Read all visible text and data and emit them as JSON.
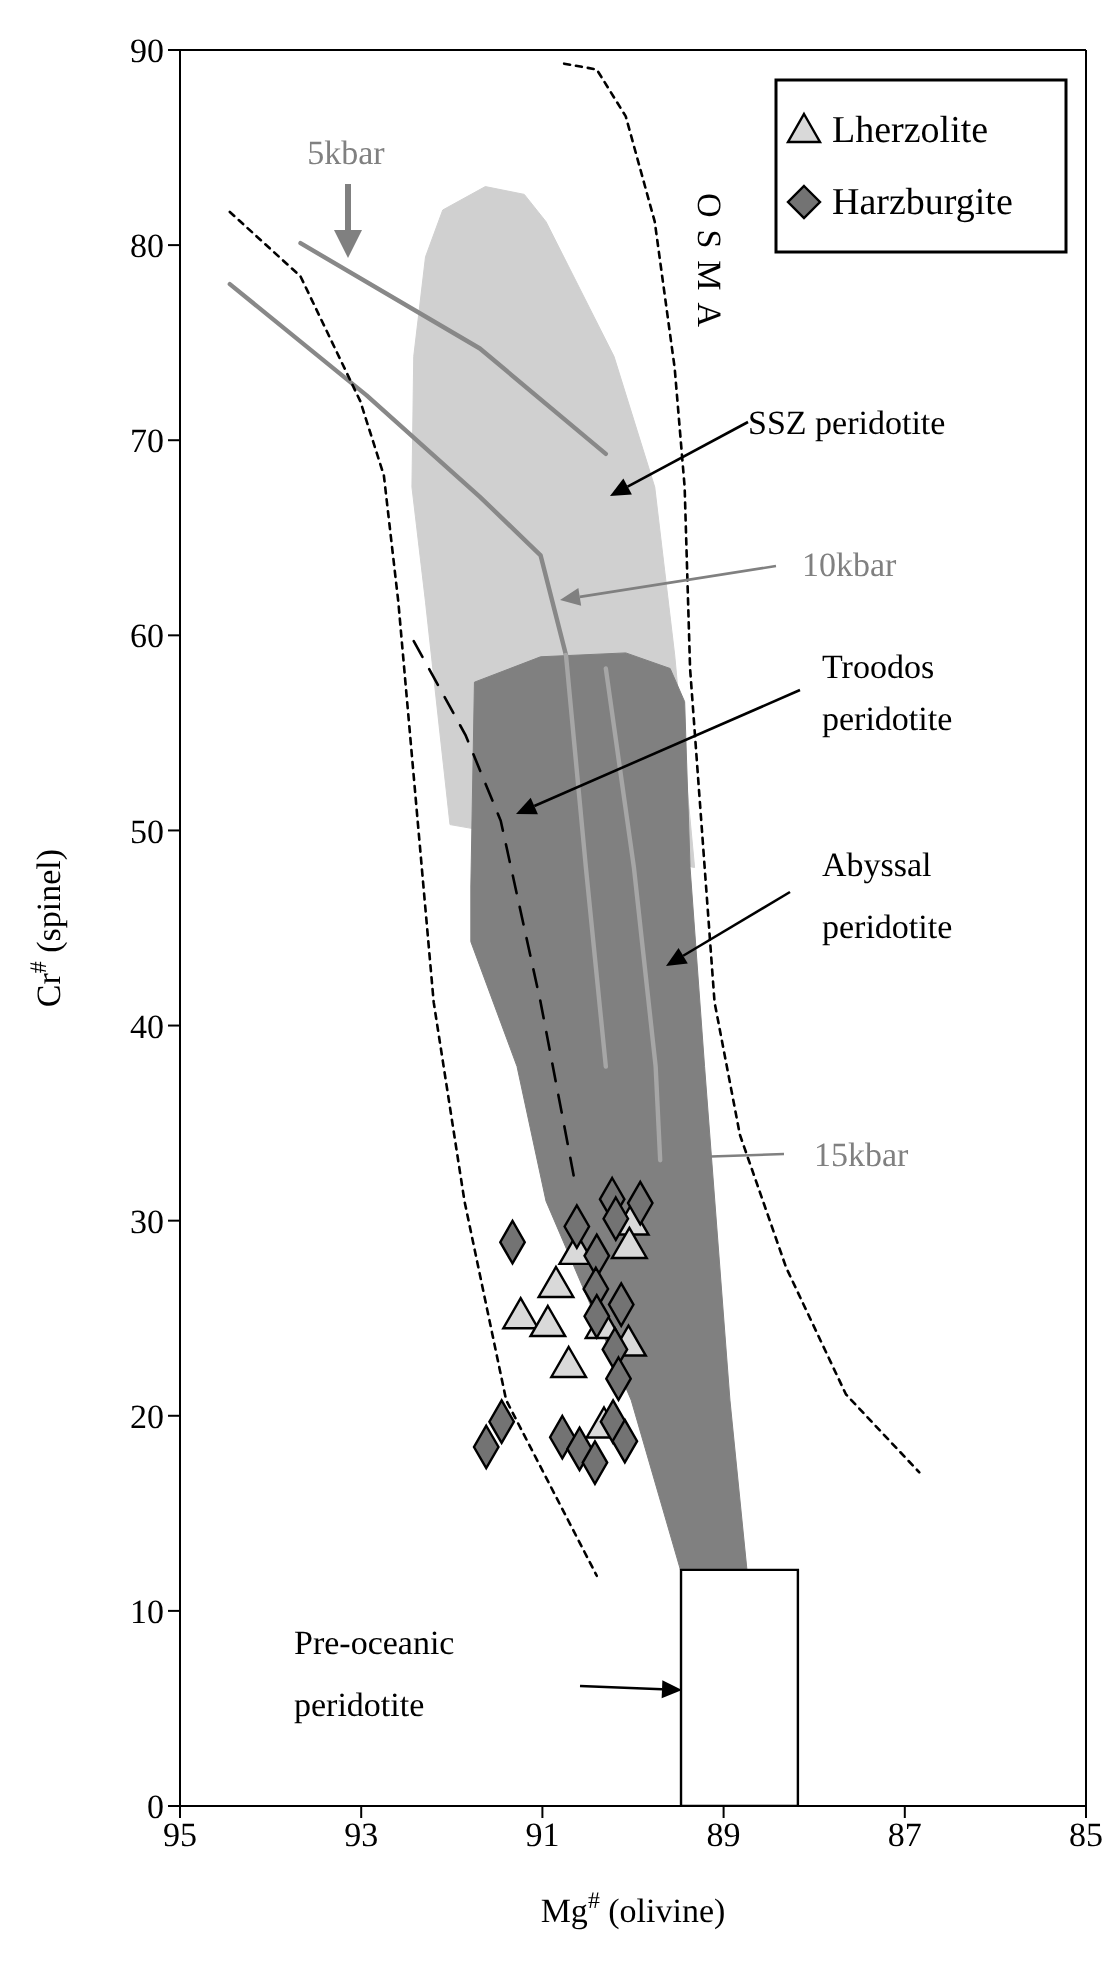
{
  "chart_data": {
    "type": "scatter",
    "xlabel": "Mg$^{#}$ (olivine)",
    "ylabel": "Cr$^{#}$ (spinel)",
    "xlim": [
      95,
      85
    ],
    "xticks": [
      95,
      93,
      91,
      89,
      87,
      85
    ],
    "ylim": [
      0,
      90
    ],
    "yticks": [
      0,
      10,
      20,
      30,
      40,
      50,
      60,
      70,
      80,
      90
    ],
    "legend": "top right",
    "series": [
      {
        "type": "area",
        "color": "#d0d0d0",
        "x": [
          92.29,
          92.1,
          91.63,
          91.2,
          90.96,
          90.21,
          89.76,
          89.54,
          89.32,
          92.02,
          92.29,
          92.44,
          92.42
        ],
        "values": [
          79.4,
          81.8,
          83.0,
          82.6,
          81.2,
          74.3,
          67.6,
          59.0,
          48.1,
          50.3,
          61.7,
          67.6,
          74.3
        ]
      },
      {
        "type": "area",
        "color": "#808080",
        "x": [
          91.75,
          91.02,
          90.08,
          89.59,
          89.43,
          89.37,
          89.21,
          88.93,
          88.74,
          89.47,
          90.02,
          90.96,
          91.28,
          91.79,
          91.79
        ],
        "values": [
          57.6,
          58.9,
          59.1,
          58.3,
          56.6,
          48.1,
          37.9,
          20.8,
          12,
          12,
          20.8,
          31.0,
          37.9,
          44.3,
          47.1
        ]
      },
      {
        "type": "line",
        "color": "#888888",
        "marker": "none",
        "line_style": "solid",
        "x": [
          93.67,
          91.69,
          90.3
        ],
        "values": [
          80.1,
          74.7,
          69.3
        ]
      },
      {
        "type": "line",
        "color": "#888888",
        "marker": "none",
        "line_style": "solid",
        "x": [
          94.45,
          92.94,
          91.69,
          91.02,
          90.74
        ],
        "values": [
          78.0,
          72.3,
          67.1,
          64.1,
          59.0
        ]
      },
      {
        "type": "line",
        "color": "#a6a6a6",
        "marker": "none",
        "line_style": "solid",
        "x": [
          90.74,
          90.52,
          90.3
        ],
        "values": [
          59.0,
          48.1,
          37.9
        ]
      },
      {
        "type": "line",
        "color": "#a6a6a6",
        "marker": "none",
        "line_style": "solid",
        "x": [
          90.3,
          89.99,
          89.75,
          89.7
        ],
        "values": [
          58.3,
          48.1,
          37.9,
          33.1
        ]
      },
      {
        "type": "line",
        "color": "#000000",
        "marker": "none",
        "line_style": "dotted",
        "x": [
          94.45,
          93.67,
          93.01,
          92.75,
          92.59,
          92.2,
          91.86,
          91.4,
          90.4
        ],
        "values": [
          81.7,
          78.4,
          72.0,
          68.2,
          61.7,
          41.2,
          31.0,
          20.8,
          11.8
        ]
      },
      {
        "type": "line",
        "color": "#000000",
        "marker": "none",
        "line_style": "dotted",
        "x": [
          90.76,
          90.4,
          90.08,
          89.76,
          89.54,
          89.43,
          89.37,
          89.1,
          88.82,
          88.31,
          87.65,
          86.84
        ],
        "values": [
          89.3,
          89.0,
          86.6,
          81.2,
          73.7,
          67.6,
          58.3,
          41.2,
          34.4,
          27.6,
          21.1,
          17.1
        ]
      },
      {
        "type": "line",
        "color": "#000000",
        "marker": "none",
        "line_style": "dashed",
        "x": [
          92.42,
          91.85,
          91.46,
          91.02,
          90.74,
          90.63
        ],
        "values": [
          59.7,
          54.9,
          50.5,
          41.2,
          34.4,
          31.7
        ]
      },
      {
        "type": "area",
        "color": "#ffffff",
        "line_style": "solid",
        "x": [
          89.47,
          88.18,
          88.18,
          89.47
        ],
        "values": [
          0,
          0,
          12.1,
          12.1
        ]
      },
      {
        "name": "Lherzolite",
        "color": "#d9d9d9",
        "marker": "triangle",
        "x": [
          90.85,
          91.24,
          90.94,
          90.71,
          90.62,
          90.02,
          90.04,
          90.33,
          90.05,
          90.32
        ],
        "values": [
          26.6,
          25.0,
          24.6,
          22.5,
          28.3,
          29.8,
          28.6,
          24.5,
          23.6,
          19.4
        ]
      },
      {
        "name": "Harzburgite",
        "color": "#737373",
        "marker": "diamond",
        "x": [
          91.33,
          90.62,
          90.23,
          89.92,
          90.19,
          90.4,
          90.41,
          90.13,
          90.4,
          90.2,
          90.16,
          91.62,
          91.45,
          90.78,
          90.59,
          90.42,
          90.22,
          90.09
        ],
        "values": [
          28.9,
          29.7,
          31.1,
          30.9,
          30.1,
          28.2,
          26.5,
          25.7,
          25.1,
          23.4,
          21.9,
          18.4,
          19.7,
          18.9,
          18.3,
          17.6,
          19.7,
          18.7
        ]
      }
    ],
    "annotations": [
      "5kbar",
      "10kbar",
      "15kbar",
      "SSZ peridotite",
      "Troodos peridotite",
      "Abyssal peridotite",
      "Pre-oceanic peridotite",
      "OSMA"
    ]
  }
}
